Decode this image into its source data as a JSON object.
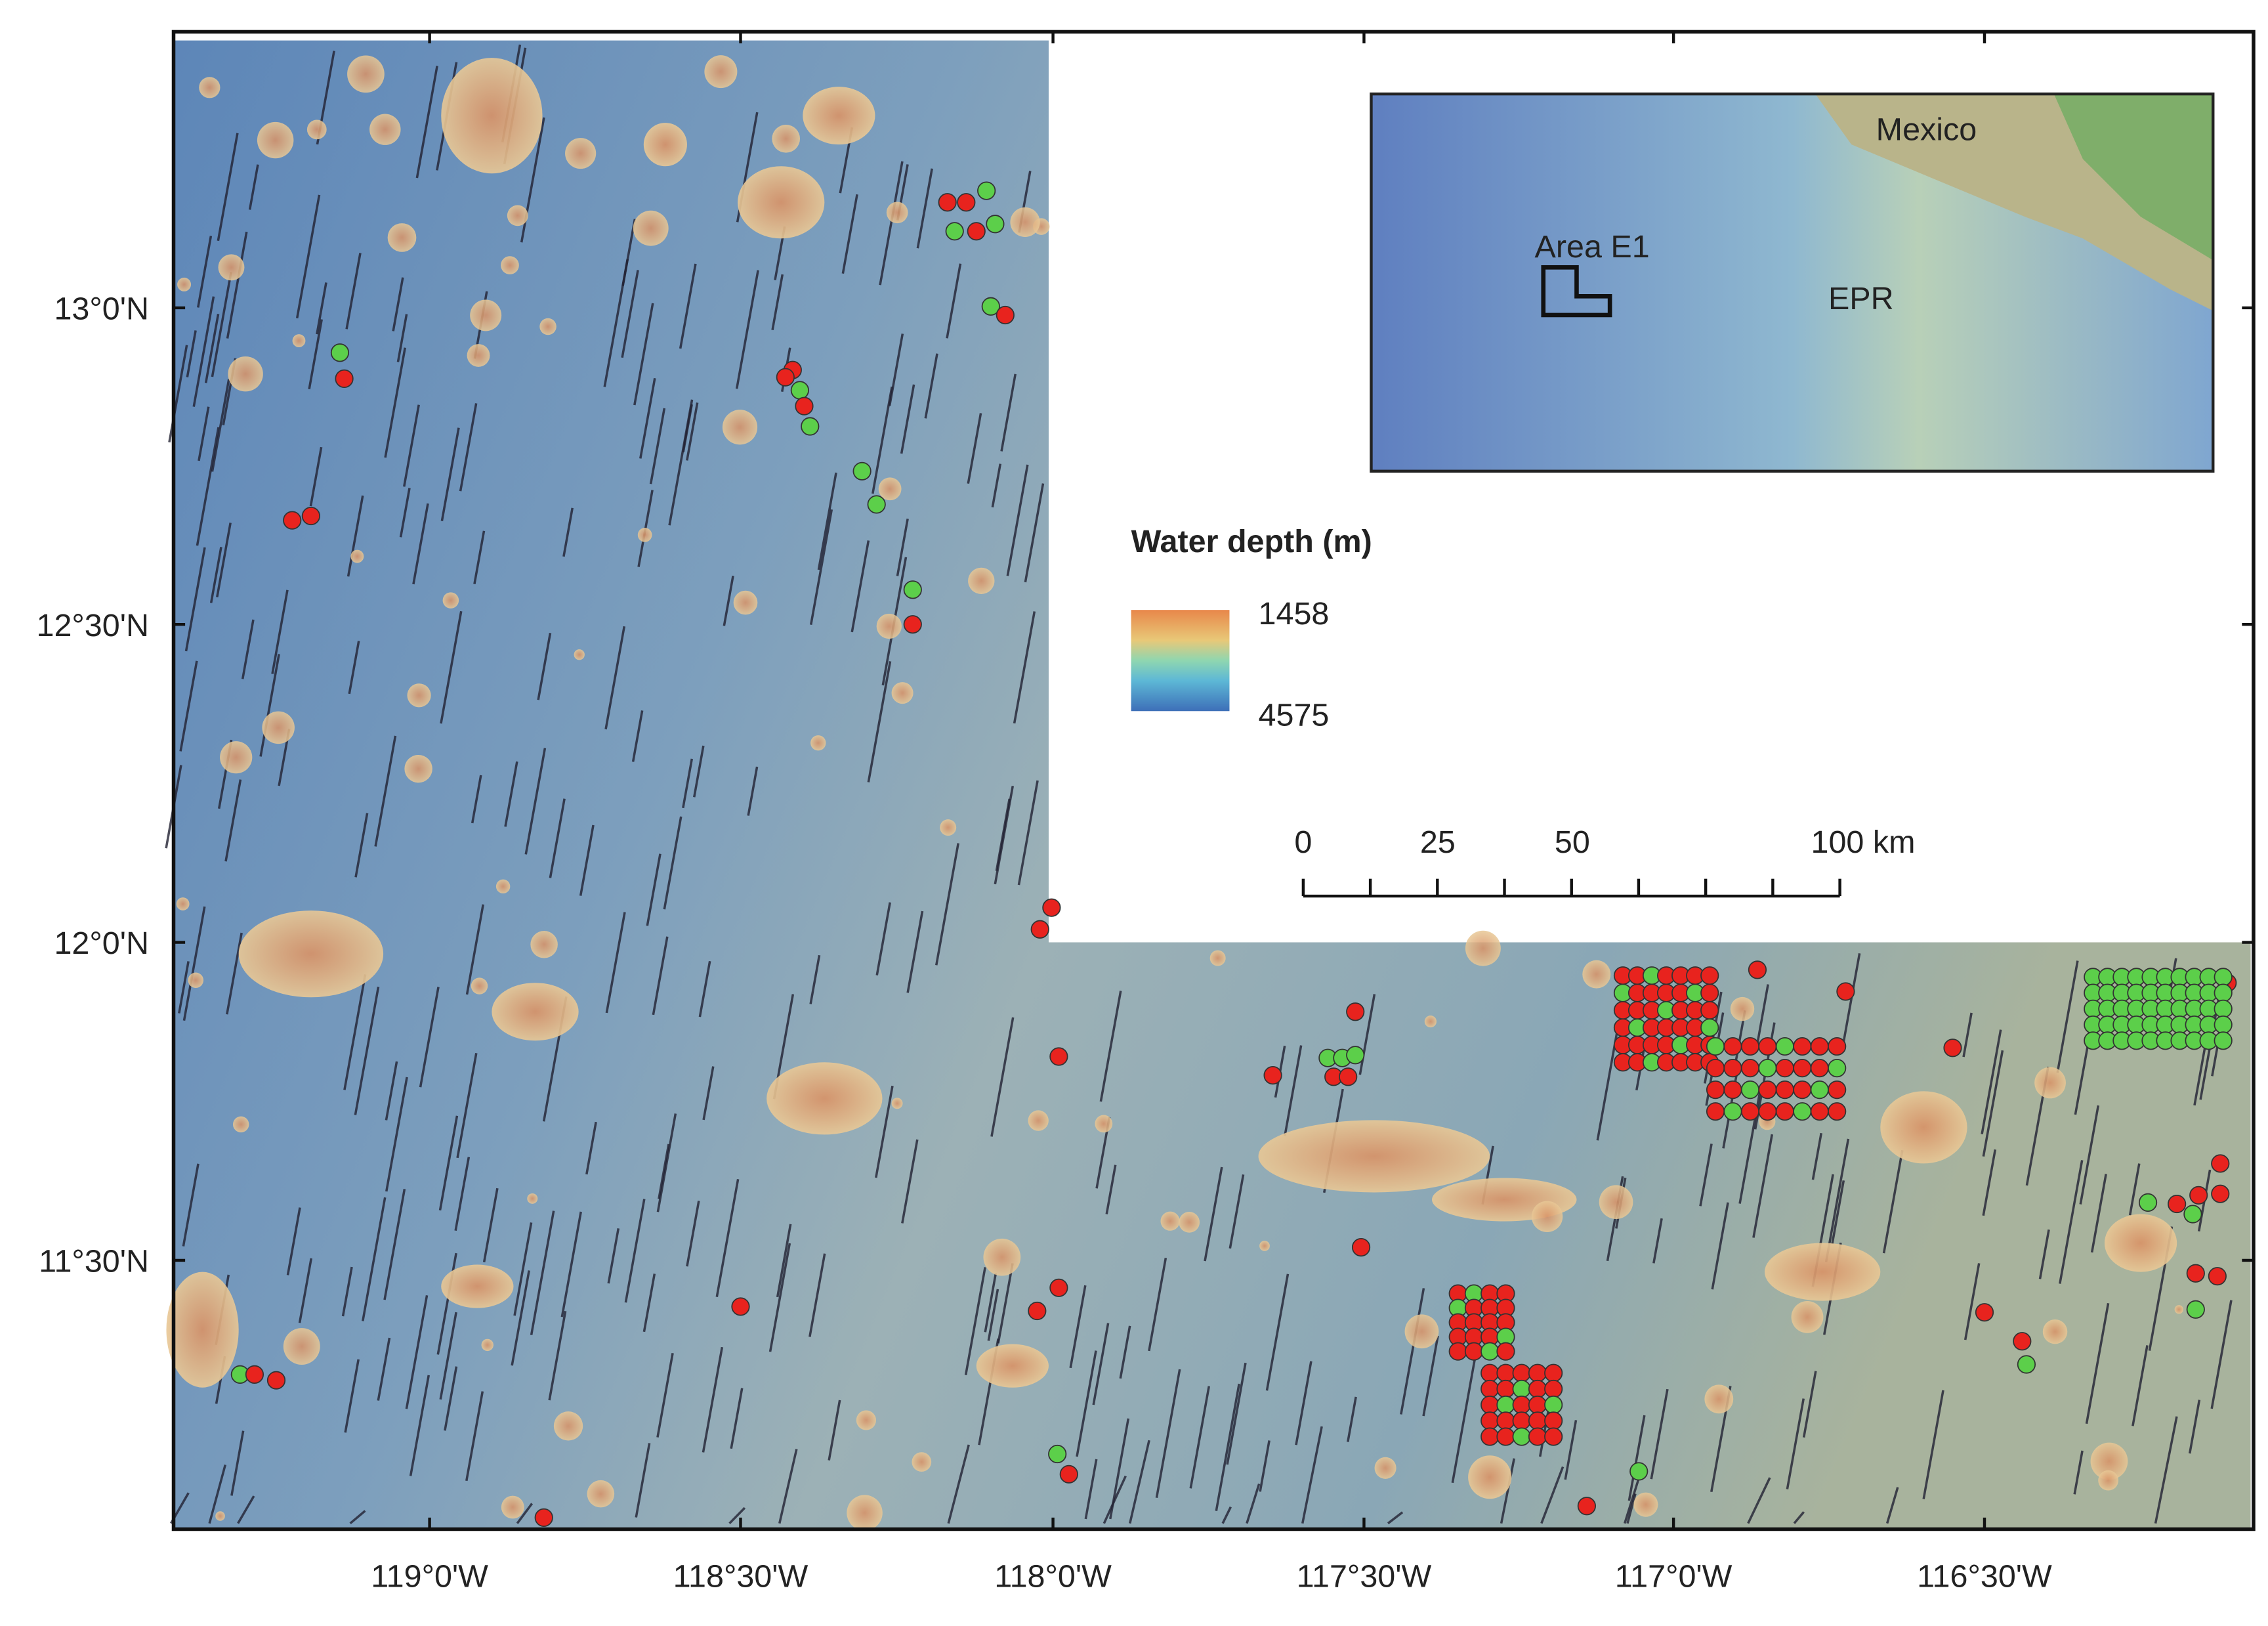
{
  "map": {
    "lat_labels": [
      "13°0'N",
      "12°30'N",
      "12°0'N",
      "11°30'N"
    ],
    "lon_labels": [
      "119°0'W",
      "118°30'W",
      "118°0'W",
      "117°30'W",
      "117°0'W",
      "116°30'W"
    ],
    "legend": {
      "title": "Water depth (m)",
      "max": "1458",
      "min": "4575"
    },
    "scale_bar": {
      "labels": [
        "0",
        "25",
        "50",
        "100 km"
      ]
    },
    "inset": {
      "country": "Mexico",
      "area": "Area E1",
      "ridge": "EPR"
    }
  }
}
